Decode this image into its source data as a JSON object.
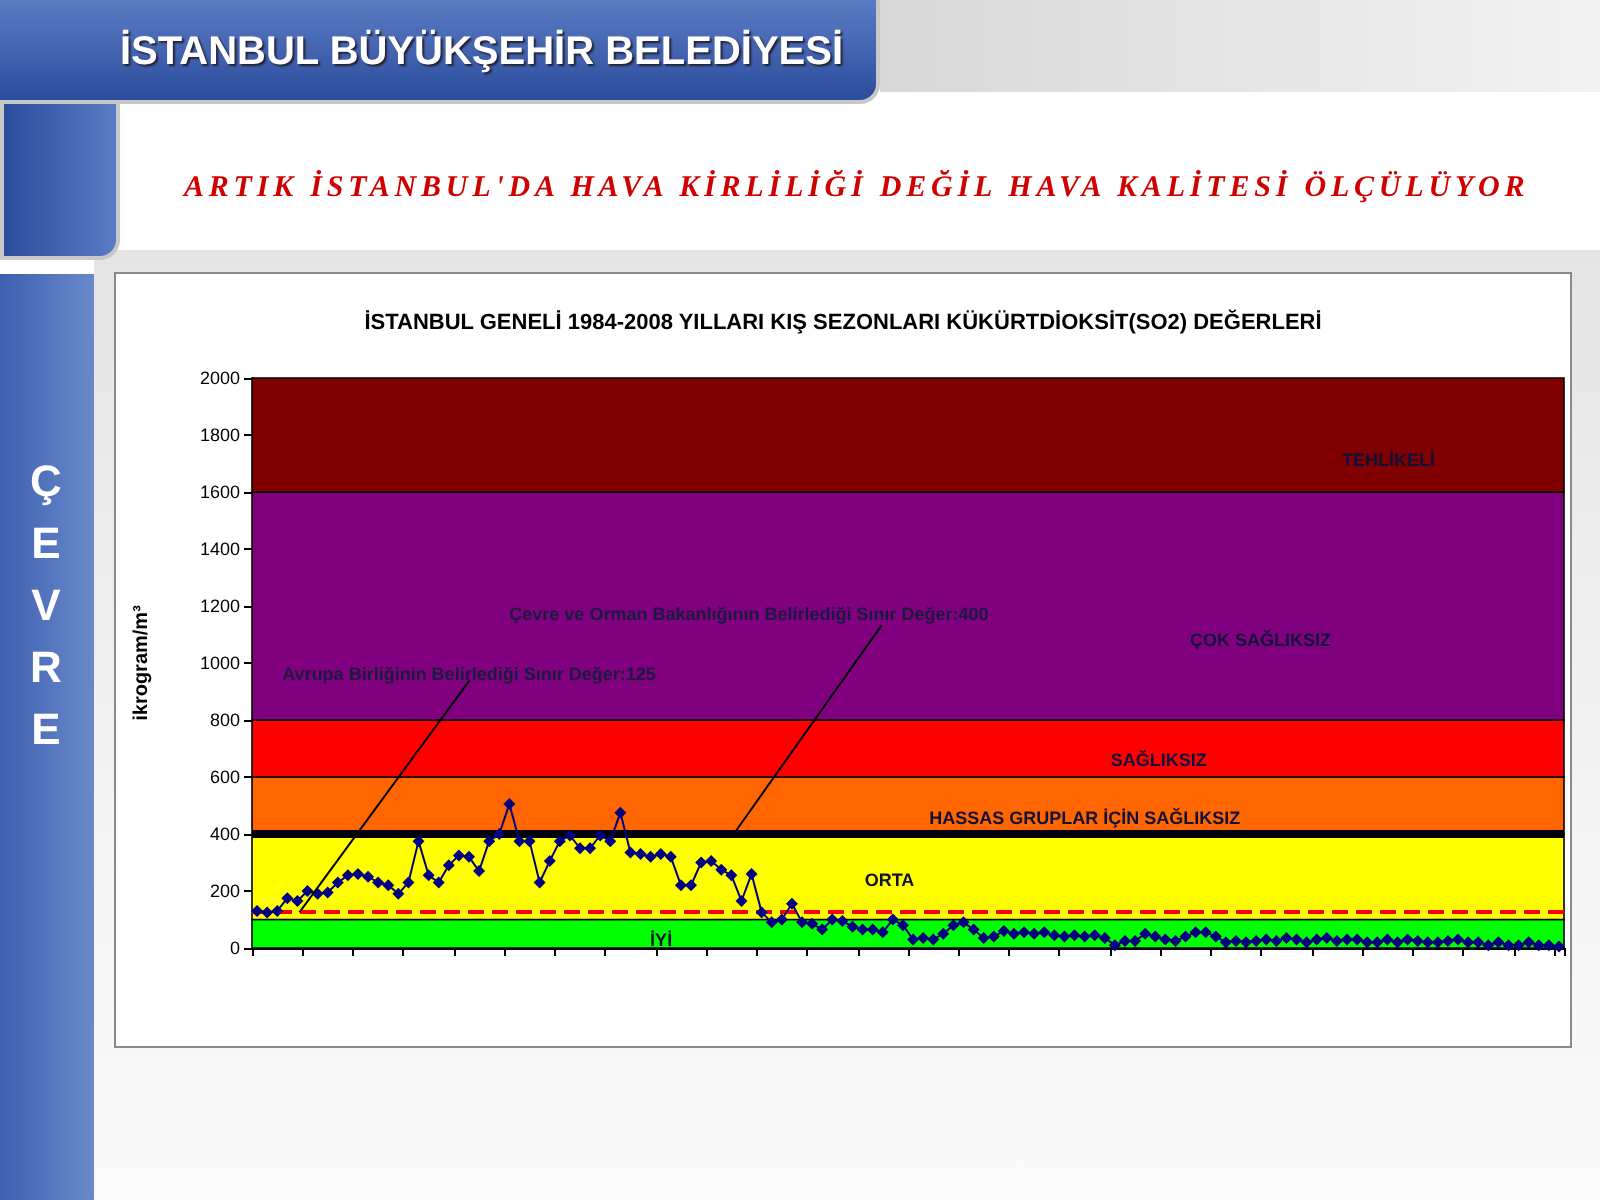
{
  "chart_data": {
    "type": "line",
    "title": "İSTANBUL GENELİ 1984-2008 YILLARI KIŞ SEZONLARI KÜKÜRTDİOKSİT(SO2) DEĞERLERİ",
    "ylabel": "ikrogram/m³",
    "annotations": [
      "İSTANBUL BÜYÜKŞEHİR BELEDİYESİ",
      "ARTIK İSTANBUL'DA HAVA KİRLİLİĞİ DEĞİL HAVA KALİTESİ ÖLÇÜLÜYOR",
      "ÇEVRE"
    ],
    "categories": [
      null,
      null,
      null,
      null,
      null,
      null,
      null,
      null,
      null,
      null,
      null,
      null,
      null,
      null,
      null,
      null,
      null,
      null,
      null,
      null,
      null,
      null,
      null,
      null,
      null,
      null,
      null,
      null,
      null,
      null,
      null,
      null,
      null,
      null,
      null,
      null,
      null,
      null,
      null,
      null,
      null,
      null,
      null,
      null,
      null,
      null,
      null,
      null,
      null,
      null,
      null,
      null,
      null,
      null,
      null,
      null,
      null,
      null,
      null,
      null,
      null,
      null,
      null,
      null,
      null,
      null,
      null,
      null,
      null,
      null,
      null,
      null,
      null,
      null,
      null,
      null,
      null,
      null,
      null,
      null,
      null,
      null,
      null,
      null,
      null,
      null,
      null,
      null,
      null,
      null,
      null,
      null,
      null,
      null,
      null,
      null,
      null,
      null,
      null,
      null,
      null,
      null,
      null,
      null,
      null,
      null,
      null,
      null,
      null,
      null,
      null,
      null,
      null,
      null,
      null,
      null,
      null,
      null,
      null,
      null,
      null,
      null,
      null,
      null,
      null,
      null,
      null,
      null,
      null,
      null
    ],
    "values": [
      130,
      125,
      130,
      175,
      165,
      200,
      190,
      195,
      230,
      255,
      260,
      250,
      230,
      220,
      190,
      230,
      375,
      255,
      230,
      290,
      325,
      320,
      270,
      375,
      400,
      505,
      375,
      375,
      230,
      305,
      375,
      395,
      350,
      350,
      395,
      375,
      475,
      335,
      330,
      320,
      330,
      320,
      220,
      220,
      300,
      305,
      275,
      255,
      165,
      260,
      125,
      90,
      100,
      155,
      90,
      85,
      65,
      100,
      95,
      75,
      65,
      65,
      55,
      100,
      80,
      30,
      35,
      30,
      50,
      80,
      90,
      65,
      35,
      40,
      60,
      50,
      55,
      50,
      55,
      45,
      40,
      45,
      40,
      45,
      35,
      10,
      25,
      25,
      50,
      40,
      30,
      25,
      40,
      55,
      55,
      40,
      20,
      25,
      20,
      25,
      30,
      25,
      35,
      30,
      20,
      30,
      35,
      25,
      30,
      30,
      20,
      20,
      30,
      20,
      30,
      25,
      20,
      20,
      25,
      30,
      20,
      20,
      10,
      20,
      10,
      10,
      20,
      10,
      10,
      5
    ],
    "color": "#000080",
    "marker": "diamond",
    "line_style": "solid",
    "ylim": [
      0,
      2000
    ],
    "yticks": [
      0,
      200,
      400,
      600,
      800,
      1000,
      1200,
      1400,
      1600,
      1800,
      2000
    ],
    "ref_lines": [
      {
        "axis": "y",
        "value": 125,
        "label": "Avrupa Birliğinin Belirlediği Sınır Değer:125",
        "color": "#ff0000",
        "line_style": "dashed"
      },
      {
        "axis": "y",
        "value": 400,
        "label": "Çevre ve Orman Bakanlığının Belirlediği Sınır Değer:400",
        "color": "#000000",
        "line_style": "solid"
      }
    ],
    "bands": [
      {
        "axis": "y",
        "from": 0,
        "to": 100,
        "label": "İYİ",
        "color": "#00ff00"
      },
      {
        "axis": "y",
        "from": 100,
        "to": 400,
        "label": "ORTA",
        "color": "#ffff00"
      },
      {
        "axis": "y",
        "from": 400,
        "to": 600,
        "label": "HASSAS GRUPLAR İÇİN SAĞLIKSIZ",
        "color": "#ff6600"
      },
      {
        "axis": "y",
        "from": 600,
        "to": 800,
        "label": "SAĞLIKSIZ",
        "color": "#ff0000"
      },
      {
        "axis": "y",
        "from": 800,
        "to": 1600,
        "label": "ÇOK SAĞLIKSIZ",
        "color": "#800080"
      },
      {
        "axis": "y",
        "from": 1600,
        "to": 2000,
        "label": "TEHLİKELİ",
        "color": "#800000"
      }
    ]
  }
}
